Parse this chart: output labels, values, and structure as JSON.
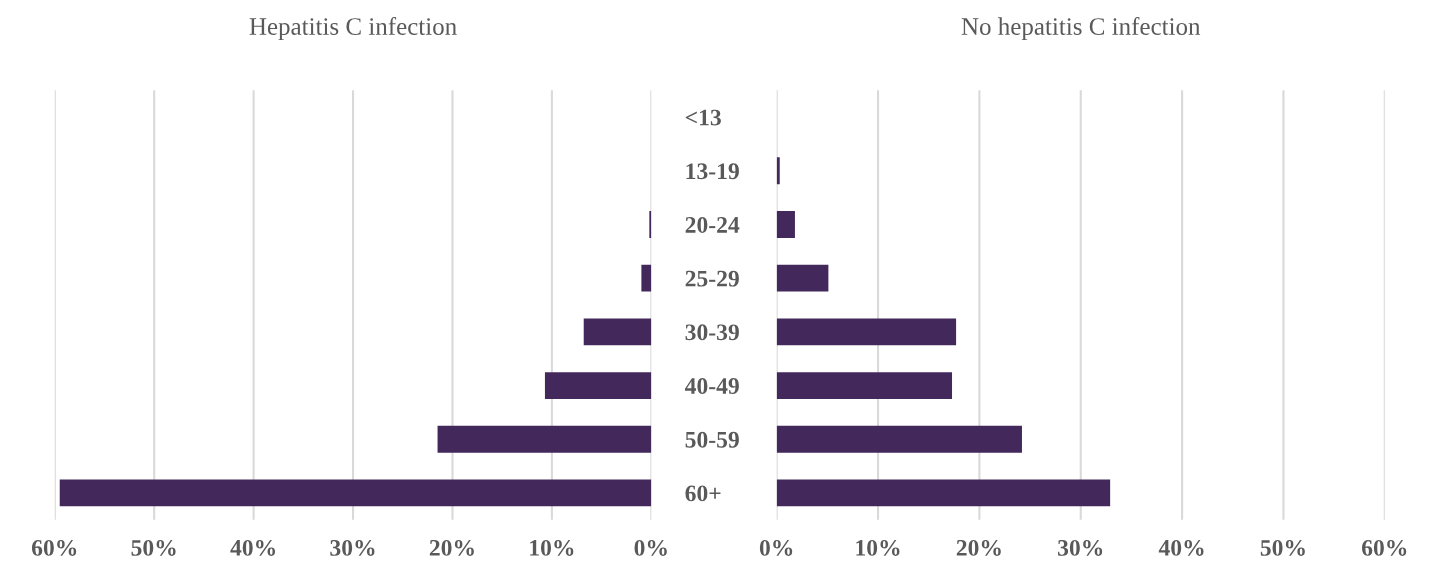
{
  "chart_data": [
    {
      "type": "bar",
      "orientation": "horizontal",
      "title": "Hepatitis C infection",
      "categories": [
        "<13",
        "13-19",
        "20-24",
        "25-29",
        "30-39",
        "40-49",
        "50-59",
        "60+"
      ],
      "series": [
        {
          "color": "#43285c",
          "values": [
            0,
            0,
            0.2,
            1.0,
            6.8,
            10.7,
            21.5,
            59.5
          ]
        }
      ],
      "xlim": [
        60,
        0
      ],
      "xticks": [
        {
          "value": 60,
          "label": "60%"
        },
        {
          "value": 50,
          "label": "50%"
        },
        {
          "value": 40,
          "label": "40%"
        },
        {
          "value": 30,
          "label": "30%"
        },
        {
          "value": 20,
          "label": "20%"
        },
        {
          "value": 10,
          "label": "10%"
        },
        {
          "value": 0,
          "label": "0%"
        }
      ],
      "grid": "x"
    },
    {
      "type": "bar",
      "orientation": "horizontal",
      "title": "No hepatitis C infection",
      "categories": [
        null,
        null,
        null,
        null,
        null,
        null,
        null,
        null
      ],
      "series": [
        {
          "color": "#43285c",
          "values": [
            0,
            0.3,
            1.8,
            5.1,
            17.7,
            17.3,
            24.2,
            32.9
          ]
        }
      ],
      "xlim": [
        0,
        60
      ],
      "xticks": [
        {
          "value": 0,
          "label": "0%"
        },
        {
          "value": 10,
          "label": "10%"
        },
        {
          "value": 20,
          "label": "20%"
        },
        {
          "value": 30,
          "label": "30%"
        },
        {
          "value": 40,
          "label": "40%"
        },
        {
          "value": 50,
          "label": "50%"
        },
        {
          "value": 60,
          "label": "60%"
        }
      ],
      "grid": "x",
      "tick_labels": "x"
    }
  ]
}
